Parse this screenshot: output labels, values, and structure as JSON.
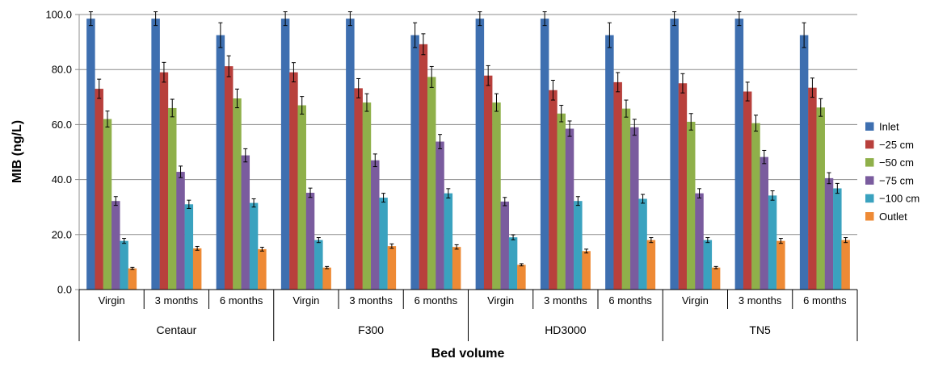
{
  "chart_data": {
    "type": "bar",
    "xlabel": "Bed volume",
    "ylabel": "MIB (ng/L)",
    "ylim": [
      0,
      100
    ],
    "yticks": [
      "0.0",
      "20.0",
      "40.0",
      "60.0",
      "80.0",
      "100.0"
    ],
    "grid": true,
    "legend_position": "right",
    "groups": [
      "Centaur",
      "F300",
      "HD3000",
      "TN5"
    ],
    "subcategories": [
      "Virgin",
      "3 months",
      "6 months"
    ],
    "series": [
      {
        "name": "Inlet",
        "color": "#3E6FB0",
        "values": [
          98.5,
          98.5,
          92.5,
          98.5,
          98.5,
          92.5,
          98.5,
          98.5,
          92.5,
          98.5,
          98.5,
          92.5
        ],
        "errors": [
          2.5,
          2.5,
          4.5,
          2.5,
          2.5,
          4.5,
          2.5,
          2.5,
          4.5,
          2.5,
          2.5,
          4.5
        ]
      },
      {
        "name": "−25 cm",
        "color": "#B8403C",
        "values": [
          73,
          79,
          81.2,
          79,
          73.2,
          89.2,
          77.8,
          72.5,
          75.4,
          75,
          72,
          73.4
        ],
        "errors": [
          3.5,
          3.6,
          3.8,
          3.5,
          3.5,
          3.8,
          3.6,
          3.6,
          3.5,
          3.5,
          3.4,
          3.5
        ]
      },
      {
        "name": "−50 cm",
        "color": "#8FB04A",
        "values": [
          62,
          66,
          69.5,
          67,
          68,
          77.3,
          68,
          64,
          65.8,
          61,
          60.5,
          66.2
        ],
        "errors": [
          2.9,
          3.2,
          3.4,
          3.2,
          3.2,
          3.8,
          3.2,
          3.0,
          3.1,
          3.0,
          2.9,
          3.2
        ]
      },
      {
        "name": "−75 cm",
        "color": "#7A5C9E",
        "values": [
          32.2,
          42.8,
          48.8,
          35.2,
          47,
          53.8,
          32,
          58.5,
          59,
          35,
          48.2,
          40.5
        ],
        "errors": [
          1.6,
          2.1,
          2.4,
          1.7,
          2.3,
          2.6,
          1.5,
          2.8,
          2.9,
          1.7,
          2.4,
          2.0
        ]
      },
      {
        "name": "−100 cm",
        "color": "#3AA2BF",
        "values": [
          17.7,
          31,
          31.5,
          18,
          33.4,
          35,
          19,
          32.2,
          33,
          18,
          34.2,
          36.8
        ],
        "errors": [
          0.9,
          1.5,
          1.5,
          0.9,
          1.6,
          1.7,
          0.9,
          1.6,
          1.6,
          0.9,
          1.7,
          1.8
        ]
      },
      {
        "name": "Outlet",
        "color": "#EE8A35",
        "values": [
          7.7,
          15,
          14.7,
          8,
          15.8,
          15.5,
          9,
          14,
          18,
          8,
          17.7,
          18
        ],
        "errors": [
          0.4,
          0.7,
          0.7,
          0.4,
          0.8,
          0.8,
          0.4,
          0.7,
          0.9,
          0.4,
          0.9,
          0.9
        ]
      }
    ]
  }
}
